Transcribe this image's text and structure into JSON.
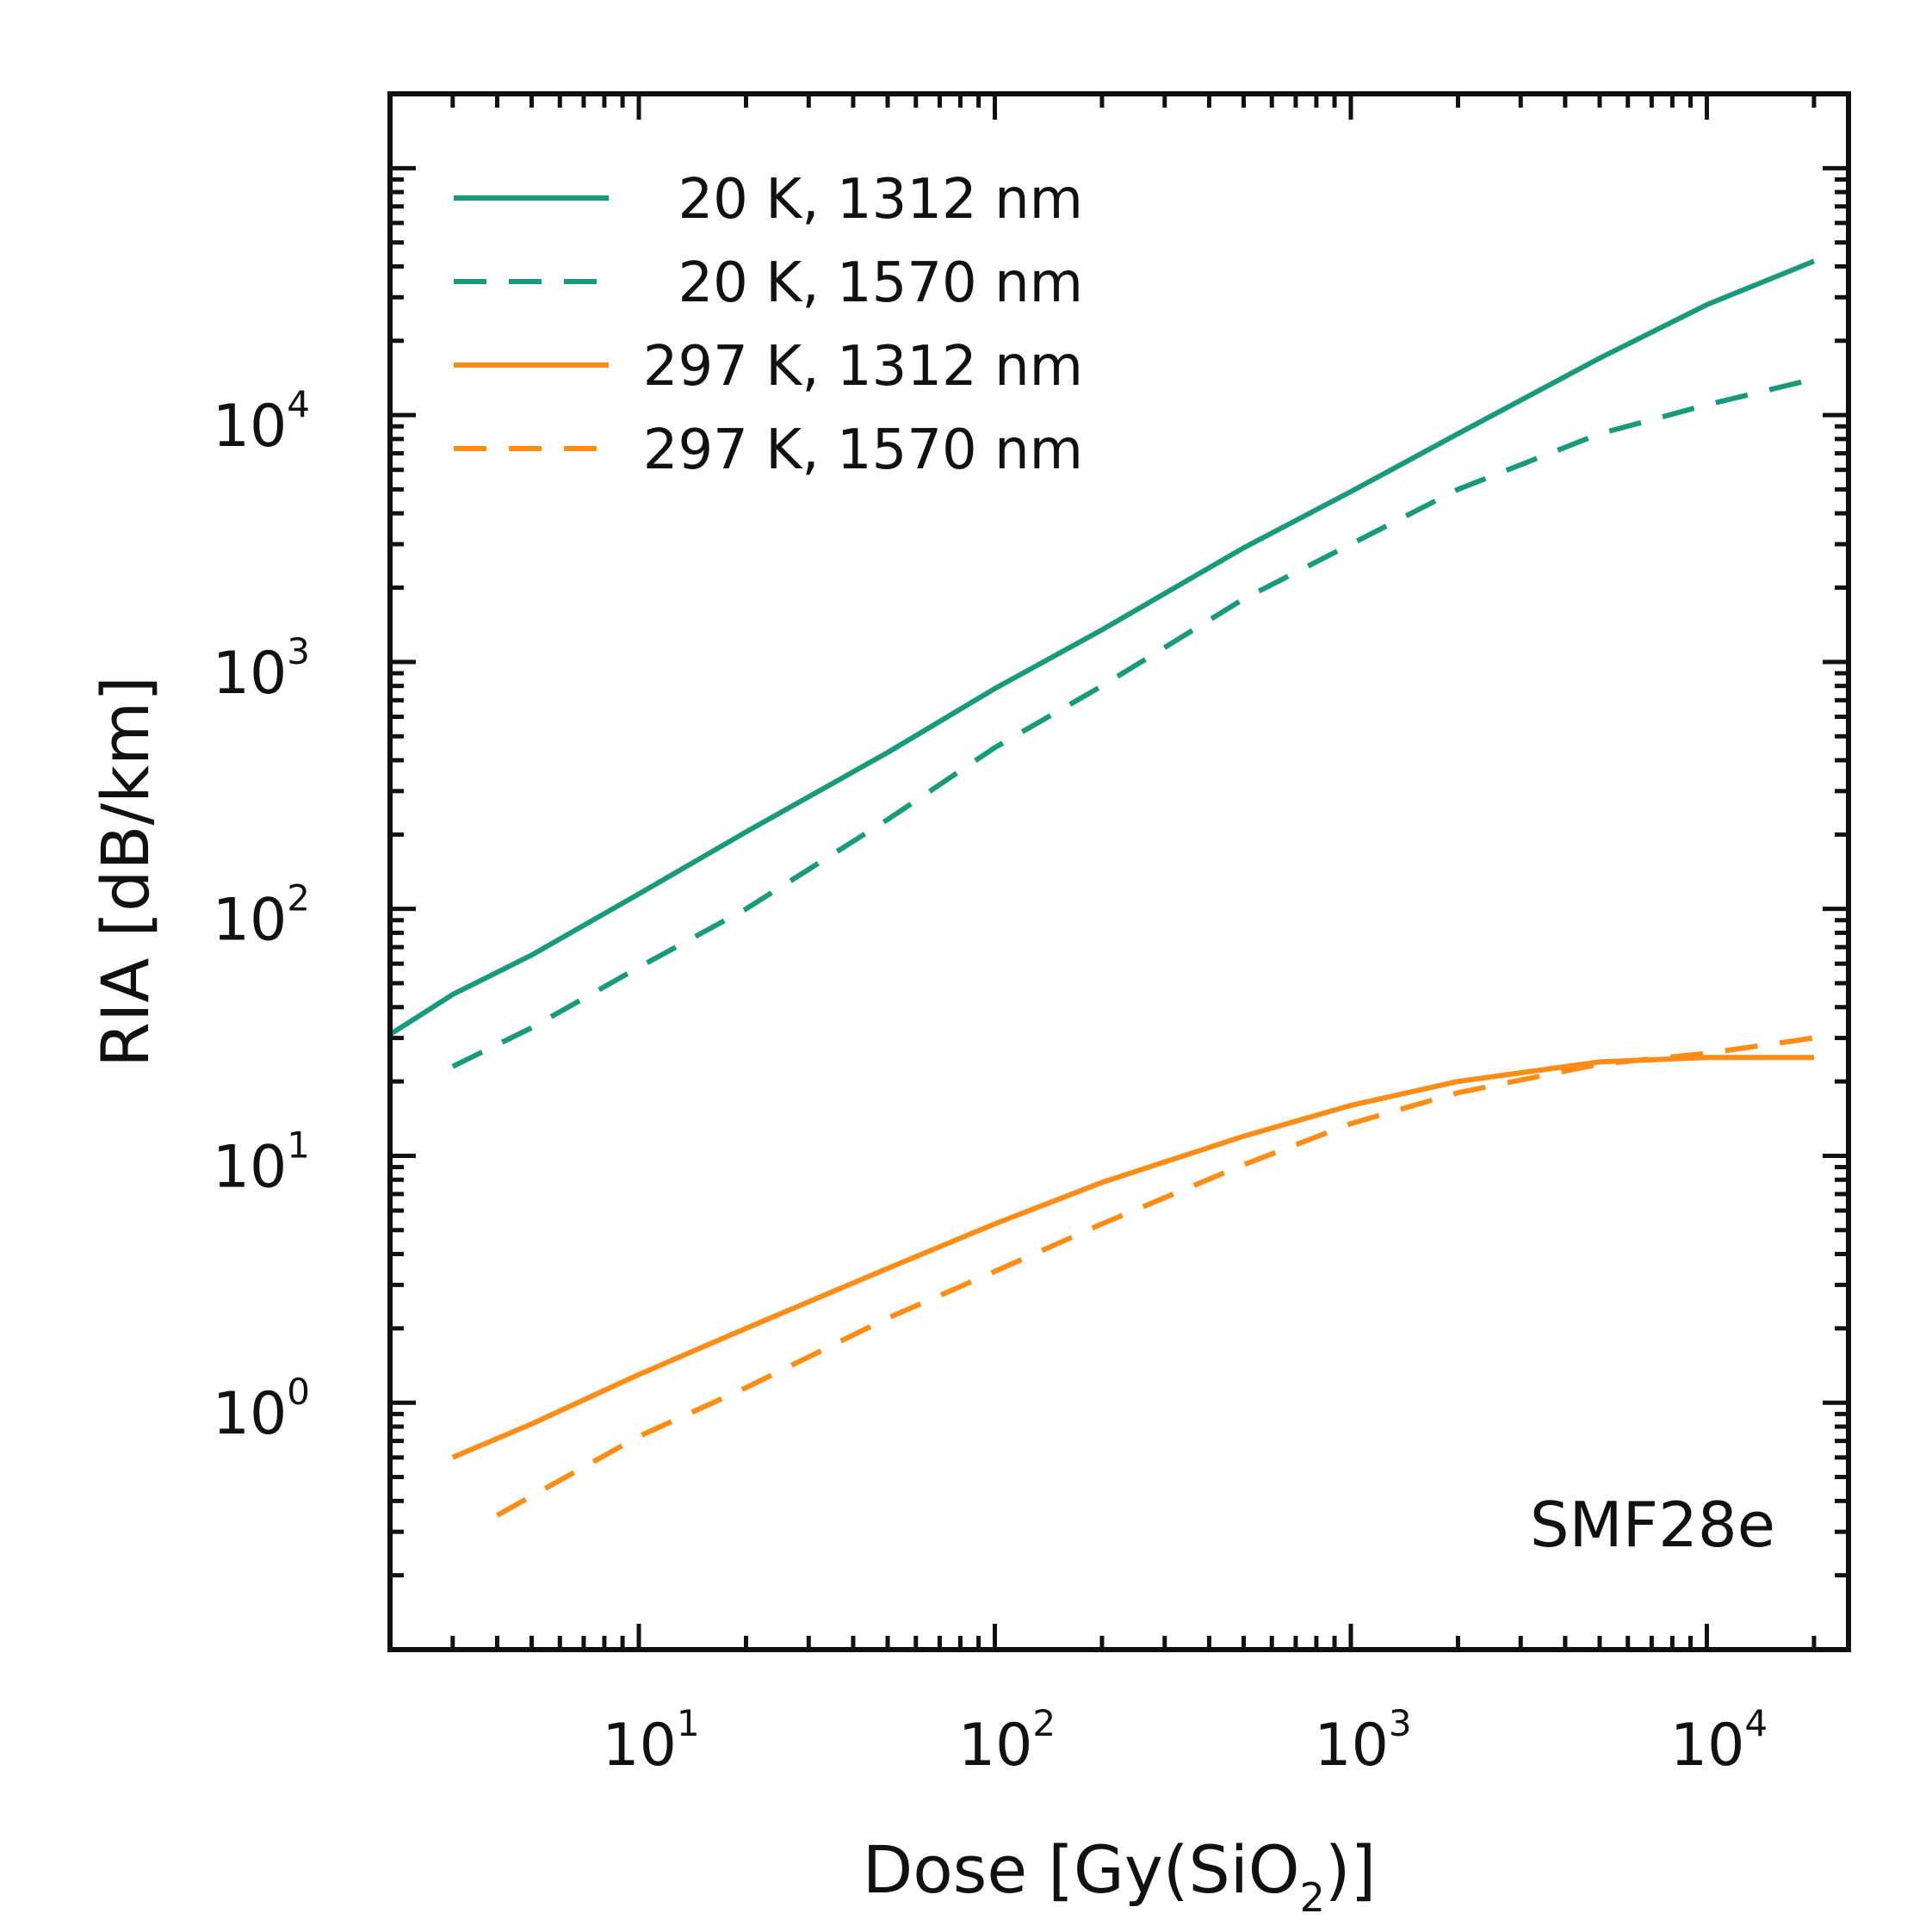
{
  "chart_data": {
    "type": "line",
    "xlabel": {
      "main": "Dose [Gy(SiO",
      "sub": "2",
      "tail": ")]"
    },
    "ylabel": "RIA [dB/km]",
    "xscale": "log",
    "yscale": "log",
    "xlim": [
      2,
      25000
    ],
    "ylim": [
      0.1,
      200000
    ],
    "xticks": [
      {
        "value": 10,
        "base": "10",
        "exp": "1"
      },
      {
        "value": 100,
        "base": "10",
        "exp": "2"
      },
      {
        "value": 1000,
        "base": "10",
        "exp": "3"
      },
      {
        "value": 10000,
        "base": "10",
        "exp": "4"
      }
    ],
    "yticks": [
      {
        "value": 1,
        "base": "10",
        "exp": "0"
      },
      {
        "value": 10,
        "base": "10",
        "exp": "1"
      },
      {
        "value": 100,
        "base": "10",
        "exp": "2"
      },
      {
        "value": 1000,
        "base": "10",
        "exp": "3"
      },
      {
        "value": 10000,
        "base": "10",
        "exp": "4"
      }
    ],
    "legend_position": "top-left",
    "annotation": "SMF28e",
    "series": [
      {
        "name": "20 K, 1312 nm",
        "color": "#1a9a7c",
        "dash": "solid",
        "x": [
          2,
          3,
          5,
          10,
          20,
          50,
          100,
          200,
          500,
          1000,
          2000,
          5000,
          10000,
          20000
        ],
        "y": [
          31,
          45,
          65,
          115,
          205,
          430,
          780,
          1350,
          2900,
          4900,
          8400,
          17000,
          28000,
          42000
        ]
      },
      {
        "name": "20 K, 1570 nm",
        "color": "#1a9a7c",
        "dash": "dashed",
        "x": [
          3,
          5,
          10,
          20,
          50,
          100,
          200,
          500,
          1000,
          2000,
          5000,
          10000,
          20000
        ],
        "y": [
          23,
          33,
          58,
          100,
          230,
          450,
          800,
          1800,
          3000,
          5000,
          8400,
          11000,
          14000
        ]
      },
      {
        "name": "297 K, 1312 nm",
        "color": "#ff8c16",
        "dash": "solid",
        "x": [
          3,
          5,
          10,
          20,
          50,
          100,
          200,
          500,
          1000,
          2000,
          5000,
          10000,
          20000
        ],
        "y": [
          0.6,
          0.82,
          1.3,
          2.0,
          3.5,
          5.3,
          7.8,
          12,
          16,
          20,
          24,
          25,
          25
        ]
      },
      {
        "name": "297 K, 1570 nm",
        "color": "#ff8c16",
        "dash": "dashed",
        "x": [
          4,
          10,
          20,
          50,
          100,
          200,
          500,
          1000,
          2000,
          5000,
          10000,
          20000
        ],
        "y": [
          0.35,
          0.73,
          1.15,
          2.2,
          3.4,
          5.3,
          9.2,
          13.5,
          18,
          23.5,
          26,
          30
        ]
      }
    ]
  }
}
